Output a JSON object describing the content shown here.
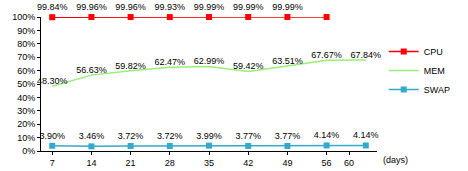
{
  "chart_data": {
    "type": "line",
    "x_label": "(days)",
    "xlim": [
      5,
      65
    ],
    "xticks": [
      7,
      14,
      21,
      28,
      35,
      42,
      49,
      56,
      60
    ],
    "ylim": [
      0,
      100
    ],
    "yticks": [
      {
        "value": 0,
        "label": "0%"
      },
      {
        "value": 10,
        "label": "10%"
      },
      {
        "value": 20,
        "label": "20%"
      },
      {
        "value": 30,
        "label": "30%"
      },
      {
        "value": 40,
        "label": "40%"
      },
      {
        "value": 50,
        "label": "50%"
      },
      {
        "value": 60,
        "label": "60%"
      },
      {
        "value": 70,
        "label": "70%"
      },
      {
        "value": 80,
        "label": "80%"
      },
      {
        "value": 90,
        "label": "90%"
      },
      {
        "value": 100,
        "label": "100%"
      }
    ],
    "grid": false,
    "legend": "right",
    "data_labels": true,
    "series": [
      {
        "name": "CPU",
        "color": "#ff0000",
        "marker": "square",
        "x": [
          7,
          14,
          21,
          28,
          35,
          42,
          49,
          56
        ],
        "values": [
          99.84,
          99.96,
          99.96,
          99.93,
          99.99,
          99.99,
          99.99,
          99.99
        ],
        "value_labels": [
          "99.84%",
          "99.96%",
          "99.96%",
          "99.93%",
          "99.99%",
          "99.99%",
          "99.99%",
          null
        ]
      },
      {
        "name": "MEM",
        "color": "#99ee77",
        "marker": "none",
        "x": [
          7,
          14,
          21,
          28,
          35,
          42,
          49,
          56,
          63
        ],
        "values": [
          48.3,
          56.63,
          59.82,
          62.47,
          62.99,
          59.42,
          63.51,
          67.67,
          67.84
        ],
        "value_labels": [
          "48.30%",
          "56.63%",
          "59.82%",
          "62.47%",
          "62.99%",
          "59.42%",
          "63.51%",
          "67.67%",
          "67.84%"
        ]
      },
      {
        "name": "SWAP",
        "color": "#33aacc",
        "marker": "square",
        "x": [
          7,
          14,
          21,
          28,
          35,
          42,
          49,
          56,
          63
        ],
        "values": [
          3.9,
          3.46,
          3.72,
          3.72,
          3.99,
          3.77,
          3.77,
          4.14,
          4.14
        ],
        "value_labels": [
          "3.90%",
          "3.46%",
          "3.72%",
          "3.72%",
          "3.99%",
          "3.77%",
          "3.77%",
          "4.14%",
          "4.14%"
        ]
      }
    ]
  }
}
